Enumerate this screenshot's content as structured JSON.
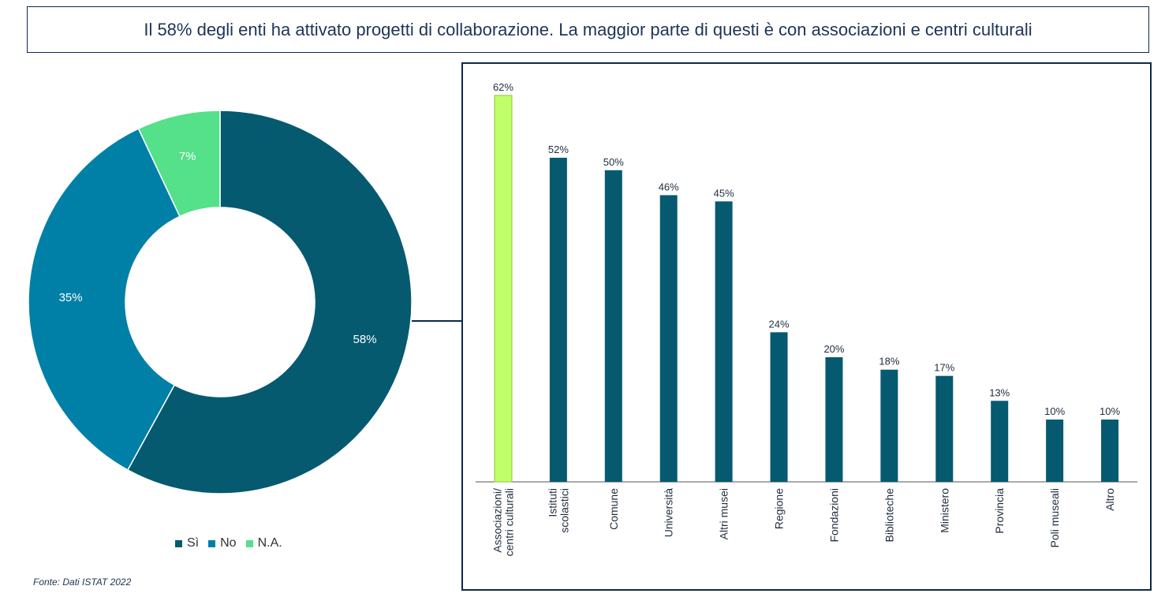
{
  "title": "Il 58% degli enti ha attivato progetti di collaborazione. La maggior parte di questi è con associazioni e centri culturali",
  "source": "Fonte: Dati ISTAT 2022",
  "colors": {
    "si": "#055a70",
    "no": "#0080a6",
    "na": "#55e08a",
    "highlight": "#c0ff6a",
    "bar": "#055a70",
    "frame": "#0b2a4a"
  },
  "legend": [
    {
      "label": "Sì",
      "color": "#055a70"
    },
    {
      "label": "No",
      "color": "#0080a6"
    },
    {
      "label": "N.A.",
      "color": "#55e08a"
    }
  ],
  "chart_data": [
    {
      "type": "pie",
      "variant": "donut",
      "categories": [
        "Sì",
        "No",
        "N.A."
      ],
      "values": [
        58,
        35,
        7
      ],
      "labels": [
        "58%",
        "35%",
        "7%"
      ],
      "legend_position": "bottom"
    },
    {
      "type": "bar",
      "categories": [
        "Associazioni/ centri culturali",
        "Istituti scolastici",
        "Comune",
        "Università",
        "Altri musei",
        "Regione",
        "Fondazioni",
        "Biblioteche",
        "Ministero",
        "Provincia",
        "Poli museali",
        "Altro"
      ],
      "category_lines": [
        [
          "Associazioni/",
          "centri culturali"
        ],
        [
          "Istituti",
          "scolastici"
        ],
        [
          "Comune"
        ],
        [
          "Università"
        ],
        [
          "Altri musei"
        ],
        [
          "Regione"
        ],
        [
          "Fondazioni"
        ],
        [
          "Biblioteche"
        ],
        [
          "Ministero"
        ],
        [
          "Provincia"
        ],
        [
          "Poli museali"
        ],
        [
          "Altro"
        ]
      ],
      "values": [
        62,
        52,
        50,
        46,
        45,
        24,
        20,
        18,
        17,
        13,
        10,
        10
      ],
      "labels": [
        "62%",
        "52%",
        "50%",
        "46%",
        "45%",
        "24%",
        "20%",
        "18%",
        "17%",
        "13%",
        "10%",
        "10%"
      ],
      "highlight_index": 0,
      "ylim": [
        0,
        62
      ],
      "grid": false
    }
  ]
}
